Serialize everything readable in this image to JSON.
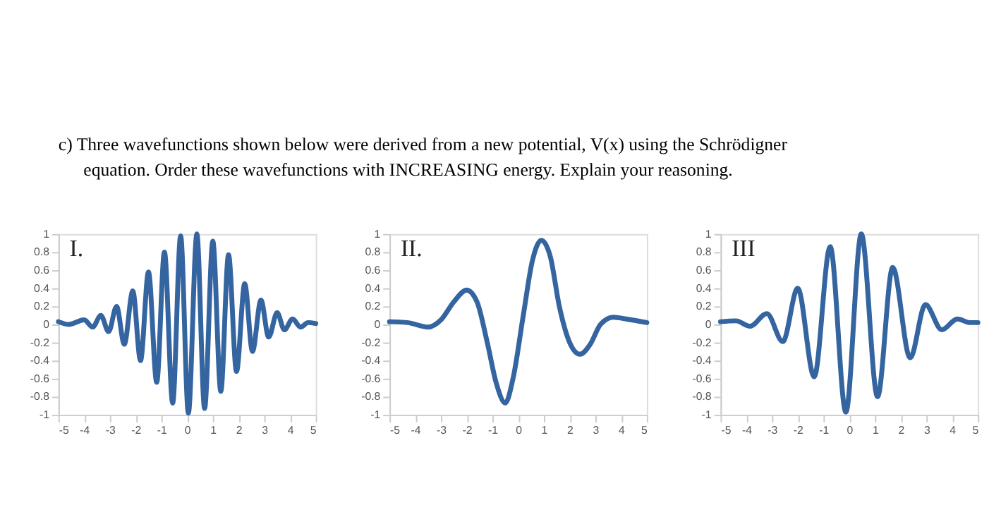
{
  "chart_data": [
    {
      "type": "line",
      "title": "I.",
      "annotations": [
        "c)  Three wavefunctions shown below were derived from a new potential, V(x) using the Schrödigner",
        "equation. Order these wavefunctions with INCREASING energy. Explain your reasoning."
      ],
      "x": [
        -5,
        -4.6,
        -4.0,
        -3.67,
        -3.35,
        -3.05,
        -2.74,
        -2.44,
        -2.11,
        -1.81,
        -1.5,
        -1.18,
        -0.88,
        -0.56,
        -0.25,
        0.05,
        0.38,
        0.68,
        1.0,
        1.31,
        1.61,
        1.92,
        2.24,
        2.54,
        2.87,
        3.17,
        3.5,
        3.78,
        4.1,
        4.41,
        4.7,
        5
      ],
      "series": [
        {
          "color": "#3465a0",
          "values": [
            0.03,
            0.0,
            0.05,
            -0.03,
            0.1,
            -0.08,
            0.2,
            -0.22,
            0.37,
            -0.4,
            0.58,
            -0.64,
            0.8,
            -0.87,
            0.98,
            -0.98,
            1.0,
            -0.93,
            0.92,
            -0.74,
            0.77,
            -0.52,
            0.45,
            -0.3,
            0.27,
            -0.14,
            0.13,
            -0.06,
            0.06,
            -0.03,
            0.02,
            0.01
          ]
        }
      ],
      "xlim": [
        -5,
        5
      ],
      "ylim": [
        -1,
        1
      ],
      "xticks": [
        -5,
        -4,
        -3,
        -2,
        -1,
        0,
        1,
        2,
        3,
        4,
        5
      ],
      "yticks": [
        -1,
        -0.8,
        -0.6,
        -0.4,
        -0.2,
        0,
        0.2,
        0.4,
        0.6,
        0.8,
        1
      ]
    },
    {
      "type": "line",
      "title": "II.",
      "x": [
        -5,
        -4.3,
        -3.5,
        -3.0,
        -2.5,
        -2.0,
        -1.6,
        -1.2,
        -0.85,
        -0.5,
        -0.2,
        0.2,
        0.55,
        0.9,
        1.25,
        1.6,
        2.0,
        2.4,
        2.8,
        3.2,
        3.7,
        4.2,
        5
      ],
      "series": [
        {
          "color": "#3465a0",
          "values": [
            0.03,
            0.02,
            -0.03,
            0.05,
            0.25,
            0.38,
            0.25,
            -0.2,
            -0.65,
            -0.87,
            -0.6,
            0.1,
            0.7,
            0.93,
            0.75,
            0.2,
            -0.2,
            -0.33,
            -0.22,
            0.0,
            0.08,
            0.06,
            0.02
          ]
        }
      ],
      "xlim": [
        -5,
        5
      ],
      "ylim": [
        -1,
        1
      ],
      "xticks": [
        -5,
        -4,
        -3,
        -2,
        -1,
        0,
        1,
        2,
        3,
        4,
        5
      ],
      "yticks": [
        -1,
        -0.8,
        -0.6,
        -0.4,
        -0.2,
        0,
        0.2,
        0.4,
        0.6,
        0.8,
        1
      ]
    },
    {
      "type": "line",
      "title": "III",
      "x": [
        -5,
        -4.4,
        -3.85,
        -3.2,
        -2.58,
        -2.0,
        -1.36,
        -0.74,
        -0.13,
        0.47,
        1.1,
        1.69,
        2.37,
        2.96,
        3.6,
        4.2,
        4.7,
        5
      ],
      "series": [
        {
          "color": "#3465a0",
          "values": [
            0.03,
            0.04,
            -0.02,
            0.12,
            -0.19,
            0.4,
            -0.58,
            0.86,
            -0.97,
            1.0,
            -0.8,
            0.63,
            -0.37,
            0.22,
            -0.06,
            0.06,
            0.02,
            0.02
          ]
        }
      ],
      "xlim": [
        -5,
        5
      ],
      "ylim": [
        -1,
        1
      ],
      "xticks": [
        -5,
        -4,
        -3,
        -2,
        -1,
        0,
        1,
        2,
        3,
        4,
        5
      ],
      "yticks": [
        -1,
        -0.8,
        -0.6,
        -0.4,
        -0.2,
        0,
        0.2,
        0.4,
        0.6,
        0.8,
        1
      ]
    }
  ]
}
